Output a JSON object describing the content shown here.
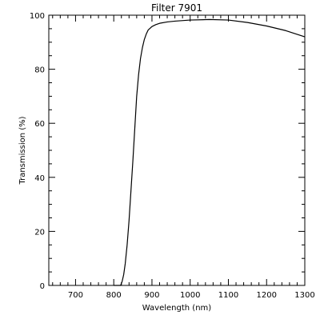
{
  "chart_data": {
    "type": "line",
    "title": "Filter 7901",
    "xlabel": "Wavelength (nm)",
    "ylabel": "Transmission (%)",
    "xlim": [
      630,
      1300
    ],
    "ylim": [
      0,
      100
    ],
    "x_ticks": [
      700,
      800,
      900,
      1000,
      1100,
      1200,
      1300
    ],
    "y_ticks": [
      0,
      20,
      40,
      60,
      80,
      100
    ],
    "grid": false,
    "legend": "none",
    "line_color": "#000000",
    "series": [
      {
        "x": [
          800,
          818,
          822,
          826,
          830,
          835,
          840,
          845,
          850,
          855,
          860,
          865,
          870,
          875,
          880,
          885,
          890,
          900,
          910,
          920,
          940,
          960,
          1000,
          1050,
          1100,
          1150,
          1200,
          1250,
          1300
        ],
        "y": [
          0,
          0,
          1.5,
          4,
          8,
          15,
          24,
          35,
          46,
          58,
          70,
          78,
          84,
          88,
          91,
          93,
          94.5,
          95.8,
          96.5,
          97,
          97.5,
          97.8,
          98.2,
          98.4,
          98.2,
          97.3,
          96,
          94.3,
          92
        ]
      }
    ]
  }
}
